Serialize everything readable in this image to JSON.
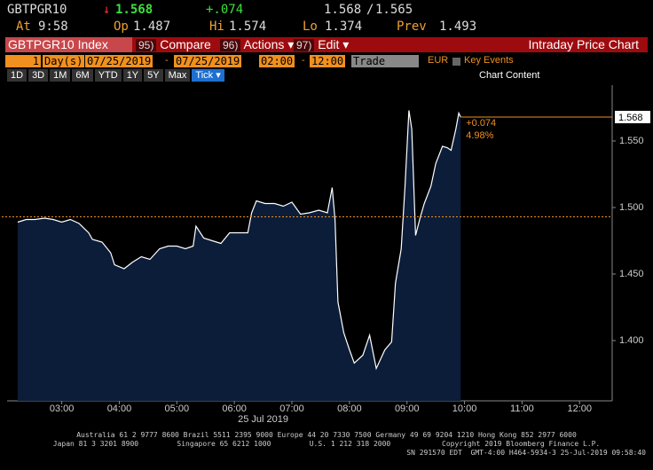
{
  "header": {
    "ticker": "GBTPGR10",
    "arrow": "↓",
    "last": "1.568",
    "change": "+.074",
    "bid": "1.568",
    "ask": "1.565",
    "time_label": "At",
    "time": "9:58",
    "open_label": "Op",
    "open": "1.487",
    "high_label": "Hi",
    "high": "1.574",
    "low_label": "Lo",
    "low": "1.374",
    "prev_label": "Prev",
    "prev": "1.493"
  },
  "toolbar": {
    "security": "GBTPGR10 Index",
    "buttons": [
      {
        "num": "95)",
        "label": "Compare"
      },
      {
        "num": "96)",
        "label": "Actions ▾"
      },
      {
        "num": "97)",
        "label": "Edit ▾"
      }
    ],
    "title": "Intraday Price Chart"
  },
  "settings": {
    "days": "1",
    "days_label": "Day(s)",
    "start_date": "07/25/2019",
    "dash1": "-",
    "end_date": "07/25/2019",
    "start_time": "02:00",
    "dash2": "-",
    "end_time": "12:00",
    "field": "Trade",
    "currency": "EUR",
    "key_events": "Key Events"
  },
  "periods": [
    "1D",
    "3D",
    "1M",
    "6M",
    "YTD",
    "1Y",
    "5Y",
    "Max",
    "Tick ▾"
  ],
  "chart_content": "Chart Content",
  "chart_data": {
    "type": "area",
    "x": [
      "02:14",
      "02:23",
      "02:32",
      "02:42",
      "02:51",
      "03:00",
      "03:09",
      "03:18",
      "03:28",
      "03:32",
      "03:42",
      "03:51",
      "03:55",
      "04:05",
      "04:14",
      "04:23",
      "04:32",
      "04:42",
      "04:51",
      "05:00",
      "05:09",
      "05:17",
      "05:20",
      "05:28",
      "05:37",
      "05:46",
      "05:55",
      "06:05",
      "06:14",
      "06:18",
      "06:23",
      "06:32",
      "06:42",
      "06:51",
      "07:00",
      "07:09",
      "07:18",
      "07:28",
      "07:37",
      "07:42",
      "07:45",
      "07:48",
      "07:54",
      "08:00",
      "08:05",
      "08:14",
      "08:21",
      "08:28",
      "08:37",
      "08:44",
      "08:48",
      "08:54",
      "08:58",
      "09:02",
      "09:05",
      "09:09",
      "09:14",
      "09:18",
      "09:25",
      "09:30",
      "09:37",
      "09:42",
      "09:46",
      "09:51",
      "09:54",
      "09:56"
    ],
    "values": [
      1.489,
      1.491,
      1.491,
      1.492,
      1.491,
      1.489,
      1.491,
      1.488,
      1.481,
      1.476,
      1.474,
      1.466,
      1.457,
      1.454,
      1.459,
      1.463,
      1.461,
      1.469,
      1.471,
      1.471,
      1.469,
      1.471,
      1.486,
      1.477,
      1.475,
      1.473,
      1.481,
      1.481,
      1.481,
      1.496,
      1.505,
      1.503,
      1.503,
      1.501,
      1.504,
      1.495,
      1.496,
      1.498,
      1.496,
      1.515,
      1.491,
      1.429,
      1.406,
      1.393,
      1.383,
      1.389,
      1.404,
      1.379,
      1.393,
      1.399,
      1.443,
      1.469,
      1.516,
      1.573,
      1.559,
      1.479,
      1.493,
      1.503,
      1.516,
      1.533,
      1.546,
      1.545,
      1.543,
      1.559,
      1.571,
      1.568
    ],
    "color": "#ffffff",
    "fill": "#0c1d3a",
    "prev_close": 1.493,
    "ref_color": "#f0901e",
    "last_label": "1.568",
    "change_label": "+0.074",
    "pct_label": "4.98%",
    "xlim": [
      "02:03",
      "12:34"
    ],
    "xticks": [
      "03:00",
      "04:00",
      "05:00",
      "06:00",
      "07:00",
      "08:00",
      "09:00",
      "10:00",
      "11:00",
      "12:00"
    ],
    "date_label": "25 Jul 2019",
    "ylim": [
      1.3547,
      1.5893
    ],
    "yticks": [
      {
        "value": 1.4,
        "label": "1.400"
      },
      {
        "value": 1.45,
        "label": "1.450"
      },
      {
        "value": 1.5,
        "label": "1.500"
      },
      {
        "value": 1.55,
        "label": "1.550"
      }
    ]
  },
  "footer": [
    "Australia 61 2 9777 8600 Brazil 5511 2395 9000 Europe 44 20 7330 7500 Germany 49 69 9204 1210 Hong Kong 852 2977 6000",
    "Japan 81 3 3201 8900         Singapore 65 6212 1000         U.S. 1 212 318 2000            Copyright 2019 Bloomberg Finance L.P.",
    "SN 291570 EDT  GMT-4:00 H464-5934-3 25-Jul-2019 09:58:40"
  ]
}
